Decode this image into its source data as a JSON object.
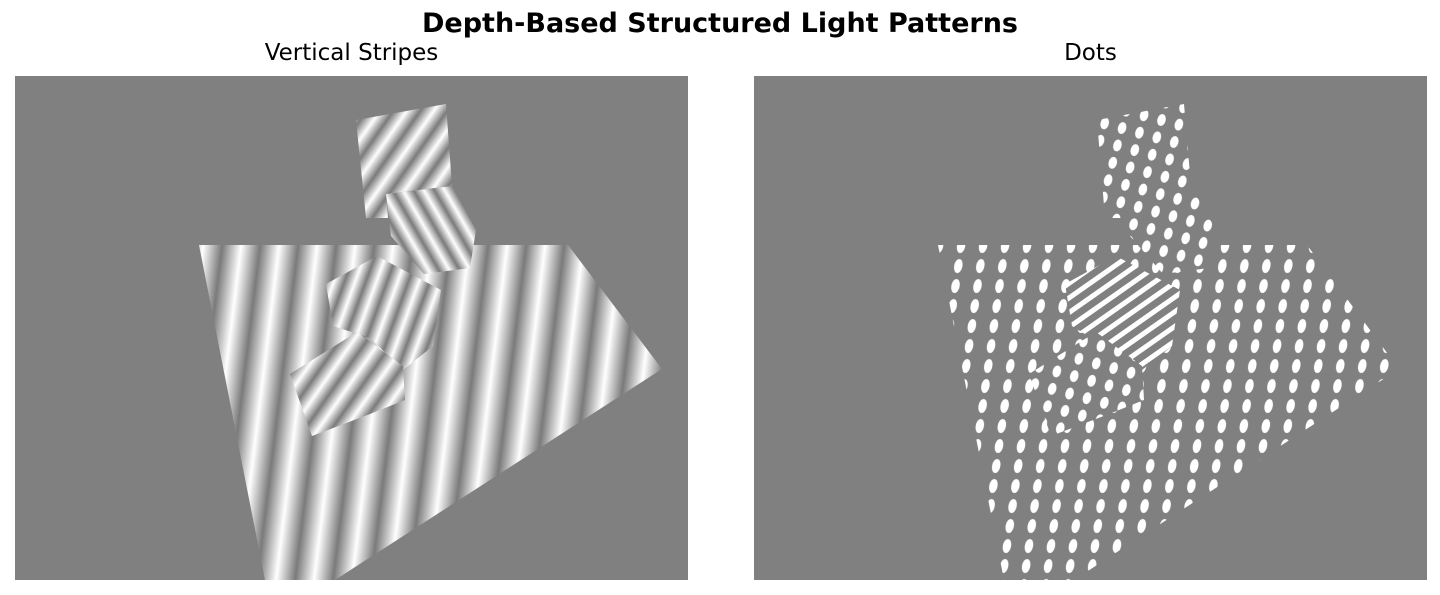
{
  "figure": {
    "title": "Depth-Based Structured Light Patterns"
  },
  "panels": [
    {
      "title": "Vertical Stripes",
      "pattern": "vertical-stripes"
    },
    {
      "title": "Dots",
      "pattern": "dots"
    }
  ],
  "colors": {
    "background_gray": "#808080",
    "pattern_light": "#ffffff",
    "pattern_dark": "#7a7a7a"
  }
}
